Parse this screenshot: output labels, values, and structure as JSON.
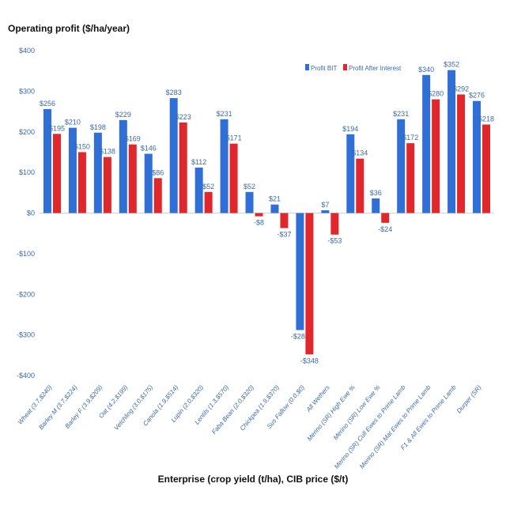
{
  "chart_data": {
    "type": "bar",
    "ylabel": "Operating profit ($/ha/year)",
    "xlabel": "Enterprise (crop yield (t/ha), CIB price ($/t)",
    "ylim": [
      -400,
      400
    ],
    "yticks": [
      "-$400",
      "-$300",
      "-$200",
      "-$100",
      "$0",
      "$100",
      "$200",
      "$300",
      "$400"
    ],
    "ytick_values": [
      -400,
      -300,
      -200,
      -100,
      0,
      100,
      200,
      300,
      400
    ],
    "legend_position": "top-right",
    "categories": [
      "Wheat (3.7,$240)",
      "Barley M (3.7,$224)",
      "Barley F (3.9,$209)",
      "Oat (4.2,$199)",
      "Vetchling (3.0,$175)",
      "Canola (1.9,$514)",
      "Lupin (2.0,$320)",
      "Lentils (1.3,$570)",
      "Faba Bean (2.0,$320)",
      "Chickpea (1.9,$370)",
      "Sus Fallow (0.0,$0)",
      "All Wethers",
      "Merino (SR) High Ewe %",
      "Merino (SR) Low Ewe %",
      "Merino (SR) Cull Ewes to Prime Lamb",
      "Merino (SR) Mat Ewes to Prime Lamb",
      "F1 & All Ewes to Prime Lamb",
      "Durper (SR)"
    ],
    "series": [
      {
        "name": "Profit BIT",
        "color": "#2f6fd6",
        "values": [
          256,
          210,
          198,
          229,
          146,
          283,
          112,
          231,
          52,
          21,
          -288,
          7,
          194,
          36,
          231,
          340,
          352,
          276
        ],
        "labels": [
          "$256",
          "$210",
          "$198",
          "$229",
          "$146",
          "$283",
          "$112",
          "$231",
          "$52",
          "$21",
          "-$288",
          "$7",
          "$194",
          "$36",
          "$231",
          "$340",
          "$352",
          "$276"
        ]
      },
      {
        "name": "Profit After Interest",
        "color": "#e0272b",
        "values": [
          195,
          150,
          138,
          169,
          86,
          223,
          52,
          171,
          -8,
          -37,
          -348,
          -53,
          134,
          -24,
          172,
          280,
          292,
          218
        ],
        "labels": [
          "$195",
          "$150",
          "$138",
          "$169",
          "$86",
          "$223",
          "$52",
          "$171",
          "-$8",
          "-$37",
          "-$348",
          "-$53",
          "$134",
          "-$24",
          "$172",
          "$280",
          "$292",
          "$218"
        ]
      }
    ]
  }
}
